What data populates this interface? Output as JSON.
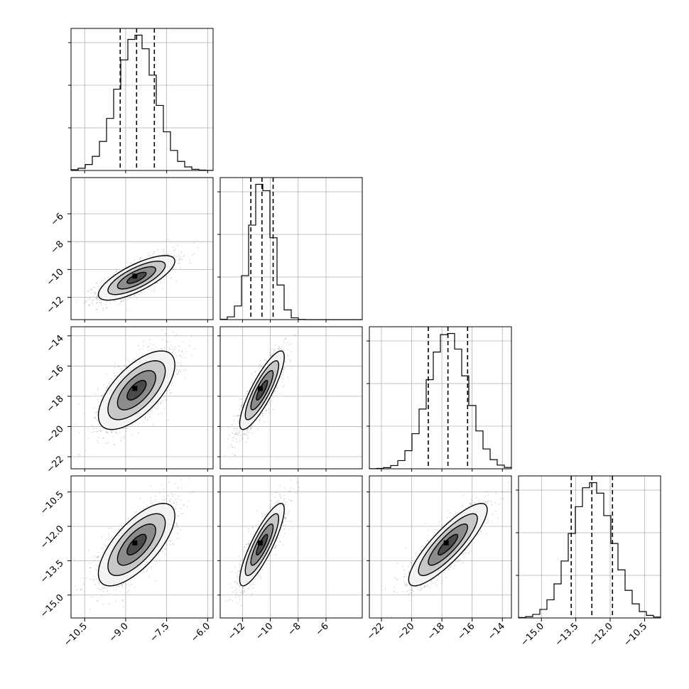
{
  "chart_data": {
    "type": "corner",
    "grid": true,
    "parameters": [
      {
        "mean": -8.6,
        "sd": 0.7,
        "q16": -9.2,
        "q50": -8.6,
        "q84": -7.95,
        "range": [
          -11.0,
          -5.8
        ],
        "ticks": [
          -10.5,
          -9.0,
          -7.5,
          -6.0
        ],
        "tick_labels": [
          "−10.5",
          "−9.0",
          "−7.5",
          "−6.0"
        ]
      },
      {
        "mean": -10.6,
        "sd": 0.8,
        "q16": -11.4,
        "q50": -10.6,
        "q84": -9.8,
        "range": [
          -13.6,
          -3.4
        ],
        "ticks": [
          -12,
          -10,
          -8,
          -6
        ],
        "tick_labels": [
          "−12",
          "−10",
          "−8",
          "−6"
        ]
      },
      {
        "mean": -17.6,
        "sd": 1.3,
        "q16": -18.9,
        "q50": -17.6,
        "q84": -16.3,
        "range": [
          -22.8,
          -13.4
        ],
        "ticks": [
          -22,
          -20,
          -18,
          -16,
          -14
        ],
        "tick_labels": [
          "−22",
          "−20",
          "−18",
          "−16",
          "−14"
        ]
      },
      {
        "mean": -12.8,
        "sd": 0.9,
        "q16": -13.7,
        "q50": -12.8,
        "q84": -11.9,
        "range": [
          -16.0,
          -9.8
        ],
        "ticks": [
          -15.0,
          -13.5,
          -12.0,
          -10.5
        ],
        "tick_labels": [
          "−15.0",
          "−13.5",
          "−12.0",
          "−10.5"
        ]
      }
    ],
    "correlations": [
      {
        "pair": [
          0,
          1
        ],
        "r": 0.75
      },
      {
        "pair": [
          0,
          2
        ],
        "r": 0.65
      },
      {
        "pair": [
          1,
          2
        ],
        "r": 0.85
      },
      {
        "pair": [
          0,
          3
        ],
        "r": 0.7
      },
      {
        "pair": [
          1,
          3
        ],
        "r": 0.85
      },
      {
        "pair": [
          2,
          3
        ],
        "r": 0.85
      }
    ],
    "histogram_bins": 20,
    "contour_levels_sigma": [
      0.5,
      1.0,
      1.5,
      2.0
    ],
    "colors": {
      "line": "#000000",
      "points": "#7f7f7f",
      "grid": "#b0b0b0"
    }
  }
}
